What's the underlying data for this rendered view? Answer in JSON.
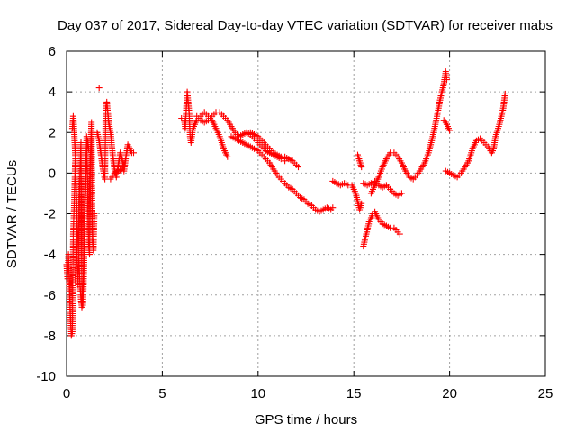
{
  "chart_data": {
    "type": "scatter",
    "title": "Day 037 of 2017, Sidereal Day-to-day VTEC variation (SDTVAR) for receiver mabs",
    "xlabel": "GPS time / hours",
    "ylabel": "SDTVAR / TECUs",
    "xlim": [
      0,
      25
    ],
    "ylim": [
      -10,
      6
    ],
    "xticks": [
      0,
      5,
      10,
      15,
      20,
      25
    ],
    "yticks": [
      -10,
      -8,
      -6,
      -4,
      -2,
      0,
      2,
      4,
      6
    ],
    "grid": true,
    "marker": "+",
    "color": "#ff0000",
    "series": [
      {
        "name": "SDTVAR",
        "tracks": [
          [
            [
              0.0,
              -4.5
            ],
            [
              0.05,
              -5.2
            ],
            [
              0.1,
              -4.0
            ],
            [
              0.15,
              -5.8
            ],
            [
              0.2,
              -7.1
            ],
            [
              0.25,
              -8.0
            ],
            [
              0.3,
              -7.8
            ],
            [
              0.35,
              -3.0
            ],
            [
              0.4,
              -1.5
            ],
            [
              0.45,
              0.5
            ],
            [
              0.5,
              -1.0
            ],
            [
              0.55,
              -4.5
            ],
            [
              0.6,
              -5.5
            ],
            [
              0.65,
              -2.0
            ],
            [
              0.7,
              0.0
            ],
            [
              0.75,
              1.5
            ],
            [
              0.8,
              -6.0
            ],
            [
              0.85,
              -6.5
            ],
            [
              0.9,
              -5.0
            ],
            [
              0.95,
              -2.5
            ],
            [
              1.0,
              0.3
            ],
            [
              1.05,
              1.8
            ],
            [
              1.1,
              -0.5
            ],
            [
              1.15,
              -3.5
            ],
            [
              1.2,
              -4.0
            ],
            [
              1.25,
              1.0
            ],
            [
              1.3,
              2.5
            ],
            [
              1.35,
              -3.3
            ],
            [
              1.4,
              -3.8
            ],
            [
              1.45,
              -2.0
            ]
          ],
          [
            [
              0.3,
              2.2
            ],
            [
              0.35,
              2.8
            ],
            [
              0.4,
              2.0
            ],
            [
              0.45,
              1.0
            ],
            [
              0.5,
              -0.5
            ],
            [
              0.55,
              -2.0
            ],
            [
              0.6,
              -3.5
            ],
            [
              0.65,
              -4.5
            ],
            [
              0.7,
              -5.5
            ],
            [
              0.75,
              -6.2
            ],
            [
              0.8,
              -6.6
            ],
            [
              0.85,
              -5.8
            ],
            [
              0.9,
              -4.0
            ],
            [
              0.95,
              -2.0
            ],
            [
              1.0,
              -0.8
            ],
            [
              1.05,
              0.8
            ],
            [
              1.1,
              1.6
            ],
            [
              1.15,
              1.2
            ]
          ],
          [
            [
              1.7,
              4.2
            ]
          ],
          [
            [
              1.6,
              2.0
            ],
            [
              1.7,
              1.6
            ],
            [
              1.8,
              0.9
            ],
            [
              1.9,
              0.2
            ],
            [
              2.0,
              -0.3
            ],
            [
              2.05,
              3.2
            ],
            [
              2.1,
              3.5
            ],
            [
              2.15,
              3.0
            ],
            [
              2.2,
              2.5
            ],
            [
              2.3,
              2.0
            ],
            [
              2.4,
              1.0
            ],
            [
              2.5,
              0.2
            ],
            [
              2.6,
              -0.2
            ],
            [
              2.7,
              0.4
            ],
            [
              2.8,
              1.0
            ],
            [
              2.9,
              0.7
            ],
            [
              3.0,
              0.1
            ],
            [
              3.1,
              0.8
            ],
            [
              3.2,
              1.4
            ],
            [
              3.3,
              1.2
            ],
            [
              3.4,
              1.0
            ],
            [
              3.5,
              1.0
            ]
          ],
          [
            [
              2.3,
              -0.3
            ],
            [
              2.5,
              0.0
            ],
            [
              2.7,
              0.1
            ],
            [
              2.9,
              0.2
            ],
            [
              3.0,
              0.5
            ]
          ],
          [
            [
              6.0,
              2.7
            ],
            [
              6.15,
              2.6
            ],
            [
              6.2,
              2.2
            ],
            [
              6.3,
              4.0
            ],
            [
              6.35,
              3.5
            ],
            [
              6.4,
              3.0
            ],
            [
              6.45,
              1.8
            ],
            [
              6.5,
              1.5
            ],
            [
              6.6,
              2.2
            ],
            [
              6.8,
              2.6
            ],
            [
              7.0,
              2.8
            ],
            [
              7.2,
              3.0
            ],
            [
              7.4,
              2.8
            ],
            [
              7.6,
              2.6
            ],
            [
              7.8,
              2.2
            ],
            [
              8.0,
              1.8
            ],
            [
              8.2,
              1.2
            ],
            [
              8.4,
              0.8
            ]
          ],
          [
            [
              6.8,
              2.8
            ],
            [
              7.0,
              2.6
            ],
            [
              7.2,
              2.5
            ],
            [
              7.4,
              2.6
            ],
            [
              7.6,
              2.8
            ],
            [
              7.8,
              3.0
            ],
            [
              8.0,
              3.0
            ],
            [
              8.2,
              2.8
            ],
            [
              8.4,
              2.6
            ],
            [
              8.6,
              2.3
            ],
            [
              8.8,
              2.0
            ],
            [
              9.0,
              1.8
            ],
            [
              9.2,
              1.9
            ],
            [
              9.4,
              2.0
            ],
            [
              9.6,
              1.9
            ],
            [
              9.8,
              1.7
            ],
            [
              10.0,
              1.5
            ],
            [
              10.2,
              1.3
            ],
            [
              10.4,
              1.1
            ],
            [
              10.6,
              1.0
            ],
            [
              10.8,
              0.9
            ],
            [
              11.0,
              0.8
            ],
            [
              11.2,
              0.7
            ],
            [
              11.4,
              0.8
            ],
            [
              11.6,
              0.7
            ],
            [
              11.8,
              0.6
            ],
            [
              12.0,
              0.4
            ],
            [
              12.1,
              0.3
            ]
          ],
          [
            [
              8.6,
              1.8
            ],
            [
              8.8,
              1.7
            ],
            [
              9.0,
              1.6
            ],
            [
              9.2,
              1.5
            ],
            [
              9.4,
              1.4
            ],
            [
              9.6,
              1.3
            ],
            [
              9.8,
              1.2
            ],
            [
              10.0,
              1.1
            ],
            [
              10.2,
              0.9
            ],
            [
              10.4,
              0.7
            ],
            [
              10.6,
              0.5
            ],
            [
              10.8,
              0.2
            ],
            [
              11.0,
              -0.1
            ],
            [
              11.2,
              -0.3
            ],
            [
              11.4,
              -0.5
            ],
            [
              11.6,
              -0.7
            ],
            [
              11.8,
              -0.8
            ],
            [
              12.0,
              -1.0
            ],
            [
              12.2,
              -1.2
            ],
            [
              12.4,
              -1.3
            ],
            [
              12.6,
              -1.5
            ],
            [
              12.8,
              -1.6
            ],
            [
              13.0,
              -1.8
            ],
            [
              13.2,
              -1.9
            ],
            [
              13.4,
              -1.8
            ],
            [
              13.6,
              -1.7
            ],
            [
              13.8,
              -1.8
            ],
            [
              13.9,
              -1.7
            ]
          ],
          [
            [
              9.6,
              2.0
            ],
            [
              9.8,
              1.9
            ],
            [
              10.0,
              1.8
            ],
            [
              10.2,
              1.6
            ],
            [
              10.4,
              1.4
            ],
            [
              10.6,
              1.2
            ],
            [
              10.8,
              1.0
            ],
            [
              11.0,
              0.9
            ],
            [
              11.2,
              0.8
            ],
            [
              11.4,
              0.6
            ]
          ],
          [
            [
              13.9,
              -0.4
            ],
            [
              14.1,
              -0.5
            ],
            [
              14.3,
              -0.6
            ],
            [
              14.5,
              -0.5
            ],
            [
              14.7,
              -0.6
            ],
            [
              14.9,
              -0.6
            ],
            [
              15.0,
              -0.8
            ],
            [
              15.1,
              -1.0
            ],
            [
              15.2,
              -1.4
            ],
            [
              15.3,
              -1.8
            ],
            [
              15.4,
              -1.5
            ]
          ],
          [
            [
              15.2,
              0.9
            ],
            [
              15.3,
              0.6
            ],
            [
              15.4,
              0.3
            ]
          ],
          [
            [
              15.5,
              -3.6
            ],
            [
              15.6,
              -3.2
            ],
            [
              15.7,
              -2.8
            ],
            [
              15.8,
              -2.4
            ],
            [
              15.9,
              -2.2
            ],
            [
              16.0,
              -2.0
            ],
            [
              16.1,
              -1.9
            ],
            [
              16.2,
              -2.1
            ],
            [
              16.3,
              -2.3
            ],
            [
              16.5,
              -2.5
            ],
            [
              16.7,
              -2.6
            ],
            [
              16.9,
              -2.7
            ],
            [
              17.1,
              -2.7
            ],
            [
              17.3,
              -2.9
            ],
            [
              17.4,
              -3.0
            ]
          ],
          [
            [
              15.5,
              -0.5
            ],
            [
              15.7,
              -0.6
            ],
            [
              15.9,
              -0.5
            ],
            [
              16.1,
              -0.4
            ],
            [
              16.3,
              -0.6
            ],
            [
              16.5,
              -0.7
            ],
            [
              16.7,
              -0.6
            ],
            [
              16.9,
              -0.8
            ],
            [
              17.1,
              -1.0
            ],
            [
              17.3,
              -1.1
            ],
            [
              17.5,
              -1.0
            ]
          ],
          [
            [
              15.9,
              -1.0
            ],
            [
              16.1,
              -0.6
            ],
            [
              16.3,
              -0.2
            ],
            [
              16.5,
              0.3
            ],
            [
              16.7,
              0.7
            ],
            [
              16.9,
              1.0
            ],
            [
              17.1,
              1.0
            ],
            [
              17.3,
              0.8
            ],
            [
              17.5,
              0.5
            ],
            [
              17.7,
              0.1
            ],
            [
              17.9,
              -0.2
            ],
            [
              18.1,
              -0.3
            ],
            [
              18.3,
              -0.1
            ],
            [
              18.5,
              0.2
            ],
            [
              18.7,
              0.5
            ],
            [
              18.9,
              1.0
            ],
            [
              19.1,
              1.7
            ],
            [
              19.3,
              2.6
            ],
            [
              19.5,
              3.6
            ],
            [
              19.7,
              4.4
            ],
            [
              19.8,
              5.0
            ],
            [
              19.85,
              4.6
            ]
          ],
          [
            [
              19.7,
              2.6
            ],
            [
              19.8,
              2.5
            ],
            [
              19.9,
              2.3
            ],
            [
              20.0,
              2.1
            ]
          ],
          [
            [
              19.8,
              0.1
            ],
            [
              20.0,
              0.0
            ],
            [
              20.2,
              -0.1
            ],
            [
              20.4,
              -0.2
            ],
            [
              20.6,
              0.0
            ],
            [
              20.8,
              0.3
            ],
            [
              21.0,
              0.6
            ],
            [
              21.2,
              1.2
            ],
            [
              21.4,
              1.6
            ],
            [
              21.6,
              1.7
            ],
            [
              21.8,
              1.5
            ],
            [
              22.0,
              1.3
            ],
            [
              22.2,
              1.0
            ],
            [
              22.3,
              1.2
            ],
            [
              22.4,
              1.8
            ],
            [
              22.6,
              2.4
            ],
            [
              22.8,
              3.2
            ],
            [
              22.9,
              3.9
            ]
          ]
        ]
      }
    ]
  }
}
